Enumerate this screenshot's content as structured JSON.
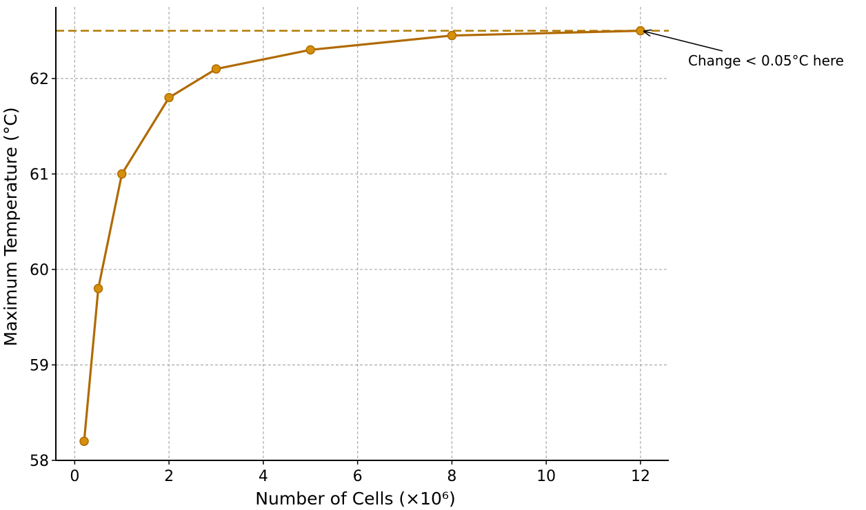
{
  "chart_data": {
    "type": "line",
    "title": "",
    "xlabel": "Number of Cells (×10⁶)",
    "ylabel": "Maximum Temperature (°C)",
    "xlim": [
      -0.4,
      12.6
    ],
    "ylim": [
      58,
      62.75
    ],
    "xticks": [
      0,
      2,
      4,
      6,
      8,
      10,
      12
    ],
    "yticks": [
      58,
      59,
      60,
      61,
      62
    ],
    "grid": true,
    "series": [
      {
        "x": [
          0.2,
          0.5,
          1,
          2,
          3,
          5,
          8,
          12
        ],
        "y": [
          58.2,
          59.8,
          61.0,
          61.8,
          62.1,
          62.3,
          62.45,
          62.5
        ],
        "color": "#b06a00",
        "marker_color": "#d4900a"
      }
    ],
    "reference_line": {
      "y": 62.5,
      "style": "dashed",
      "color": "#b07a00"
    },
    "annotation": {
      "text": "Change < 0.05°C here",
      "x": 12,
      "y": 62.5
    }
  }
}
